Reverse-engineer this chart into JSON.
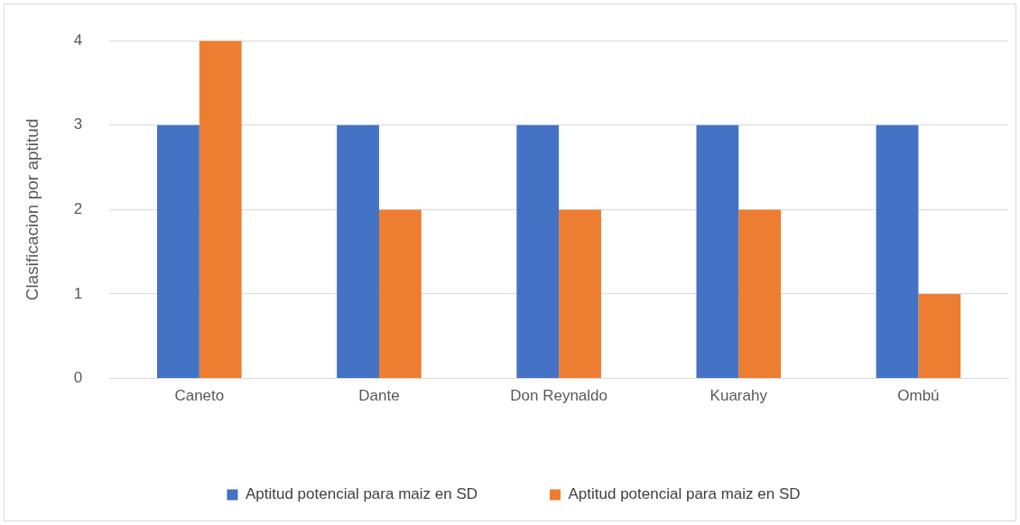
{
  "chart_data": {
    "type": "bar",
    "ylabel": "Clasificacion por aptitud",
    "categories": [
      "Caneto",
      "Dante",
      "Don Reynaldo",
      "Kuarahy",
      "Ombú"
    ],
    "series": [
      {
        "name": "Aptitud potencial para maiz en SD",
        "color": "#4472c4",
        "values": [
          3,
          3,
          3,
          3,
          3
        ]
      },
      {
        "name": "Aptitud potencial para maiz en SD",
        "color": "#ed7d31",
        "values": [
          4,
          2,
          2,
          2,
          1
        ]
      }
    ],
    "ylim": [
      0,
      4
    ],
    "yticks": [
      0,
      1,
      2,
      3,
      4
    ],
    "grid": "y",
    "legend": "bottom"
  }
}
